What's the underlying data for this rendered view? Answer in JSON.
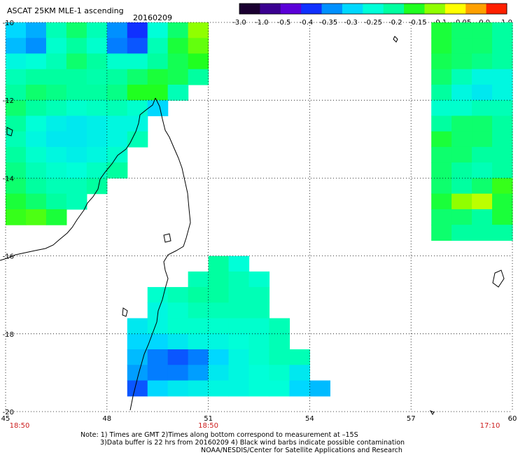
{
  "header": {
    "title": "ASCAT 25KM MLE-1 ascending",
    "date": "20160209"
  },
  "colorbar": {
    "labels": [
      "-3.0",
      "-1.0",
      "-0.5",
      "-0.4",
      "-0.35",
      "-0.3",
      "-0.25",
      "-0.2",
      "-0.15",
      "-0.1",
      "-0.05",
      "0.0",
      "1.0"
    ],
    "colors": [
      "#1a0030",
      "#3a0090",
      "#5a00d8",
      "#1030ff",
      "#0090ff",
      "#00d8ff",
      "#00ffd8",
      "#00ffa0",
      "#20ff20",
      "#90ff00",
      "#ffff00",
      "#ffa000",
      "#ff2000"
    ]
  },
  "map": {
    "lon_range": [
      45,
      60
    ],
    "lat_range": [
      -10,
      -20
    ],
    "lat_ticks": [
      "-10",
      "-12",
      "-14",
      "-16",
      "-18",
      "-20"
    ],
    "lon_ticks": [
      "45",
      "48",
      "51",
      "54",
      "57",
      "60"
    ],
    "times": [
      {
        "lon": 45,
        "label": "18:50"
      },
      {
        "lon": 51,
        "label": "18:50"
      },
      {
        "lon": 59.5,
        "label": "17:10"
      }
    ]
  },
  "chart_data": {
    "type": "heatmap",
    "title": "ASCAT 25KM MLE-1 ascending",
    "x_range": [
      45,
      60
    ],
    "y_range": [
      -10,
      -20
    ],
    "cell_lon": 0.6,
    "cell_lat": 0.4,
    "swaths": [
      {
        "name": "west",
        "lon_start": 45.0,
        "lat_start": -10.0,
        "rows": [
          [
            -0.3,
            -0.33,
            -0.22,
            -0.18,
            -0.22,
            -0.35,
            -0.4,
            -0.25,
            -0.18,
            -0.1
          ],
          [
            -0.32,
            -0.35,
            -0.24,
            -0.2,
            -0.24,
            -0.36,
            -0.38,
            -0.22,
            -0.16,
            -0.12
          ],
          [
            -0.26,
            -0.25,
            -0.22,
            -0.18,
            -0.2,
            -0.24,
            -0.24,
            -0.2,
            -0.17,
            -0.15
          ],
          [
            -0.22,
            -0.2,
            -0.2,
            -0.2,
            -0.21,
            -0.2,
            -0.18,
            -0.16,
            -0.17,
            -0.2
          ],
          [
            -0.2,
            -0.18,
            -0.19,
            -0.2,
            -0.2,
            -0.19,
            -0.15,
            -0.15,
            -0.22,
            null
          ],
          [
            -0.18,
            -0.2,
            -0.22,
            -0.24,
            -0.23,
            -0.22,
            -0.24,
            -0.3,
            null,
            null
          ],
          [
            -0.2,
            -0.25,
            -0.27,
            -0.28,
            -0.27,
            -0.26,
            -0.26,
            null,
            null,
            null
          ],
          [
            -0.22,
            -0.26,
            -0.28,
            -0.28,
            -0.27,
            -0.26,
            -0.22,
            null,
            null,
            null
          ],
          [
            -0.2,
            -0.24,
            -0.26,
            -0.27,
            -0.26,
            -0.24,
            null,
            null,
            null,
            null
          ],
          [
            -0.19,
            -0.22,
            -0.24,
            -0.25,
            -0.23,
            -0.2,
            null,
            null,
            null,
            null
          ],
          [
            -0.18,
            -0.2,
            -0.22,
            -0.22,
            -0.2,
            null,
            null,
            null,
            null,
            null
          ],
          [
            -0.16,
            -0.18,
            -0.2,
            -0.22,
            null,
            null,
            null,
            null,
            null,
            null
          ],
          [
            -0.14,
            -0.13,
            -0.16,
            null,
            null,
            null,
            null,
            null,
            null,
            null
          ]
        ]
      },
      {
        "name": "central",
        "lon_start": 48.6,
        "lat_start": -16.0,
        "rows": [
          [
            null,
            null,
            null,
            null,
            -0.2,
            -0.25
          ],
          [
            null,
            null,
            null,
            -0.22,
            -0.2,
            -0.22,
            -0.24
          ],
          [
            null,
            -0.24,
            -0.22,
            -0.2,
            -0.2,
            -0.22,
            -0.22
          ],
          [
            null,
            -0.26,
            -0.24,
            -0.22,
            -0.22,
            -0.22,
            -0.22
          ],
          [
            -0.28,
            -0.26,
            -0.24,
            -0.24,
            -0.24,
            -0.24,
            -0.24,
            -0.22
          ],
          [
            -0.3,
            -0.3,
            -0.28,
            -0.26,
            -0.26,
            -0.25,
            -0.24,
            -0.22
          ],
          [
            -0.32,
            -0.36,
            -0.38,
            -0.36,
            -0.3,
            -0.26,
            -0.24,
            -0.22,
            -0.22
          ],
          [
            -0.34,
            -0.36,
            -0.36,
            -0.34,
            -0.28,
            -0.26,
            -0.25,
            -0.24,
            -0.28
          ],
          [
            -0.38,
            -0.3,
            -0.28,
            -0.27,
            -0.26,
            -0.26,
            -0.25,
            -0.25,
            -0.3,
            -0.32
          ]
        ]
      },
      {
        "name": "east",
        "lon_start": 57.6,
        "lat_start": -10.0,
        "rows": [
          [
            -0.16,
            -0.18,
            -0.18,
            -0.2
          ],
          [
            -0.16,
            -0.18,
            -0.18,
            -0.2
          ],
          [
            -0.17,
            -0.18,
            -0.19,
            -0.2
          ],
          [
            -0.18,
            -0.22,
            -0.26,
            -0.26
          ],
          [
            -0.2,
            -0.26,
            -0.28,
            -0.26
          ],
          [
            -0.24,
            -0.24,
            -0.22,
            -0.22
          ],
          [
            -0.2,
            -0.18,
            -0.18,
            -0.2
          ],
          [
            -0.16,
            -0.18,
            -0.18,
            -0.2
          ],
          [
            -0.18,
            -0.18,
            -0.2,
            -0.2
          ],
          [
            -0.18,
            -0.2,
            -0.22,
            -0.2
          ],
          [
            -0.18,
            -0.2,
            -0.18,
            -0.14
          ],
          [
            -0.16,
            -0.1,
            -0.08,
            -0.16
          ],
          [
            -0.18,
            -0.18,
            -0.2,
            -0.16
          ],
          [
            -0.18,
            -0.2,
            -0.2,
            -0.2
          ]
        ]
      }
    ]
  },
  "notes": {
    "line1": "Note: 1) Times are GMT 2)Times along bottom correspond to measurement at –15S",
    "line2": "3)Data buffer is 22 hrs from 20160209 4) Black wind barbs indicate possible contamination",
    "line3": "NOAA/NESDIS/Center for Satellite Applications and Research"
  }
}
